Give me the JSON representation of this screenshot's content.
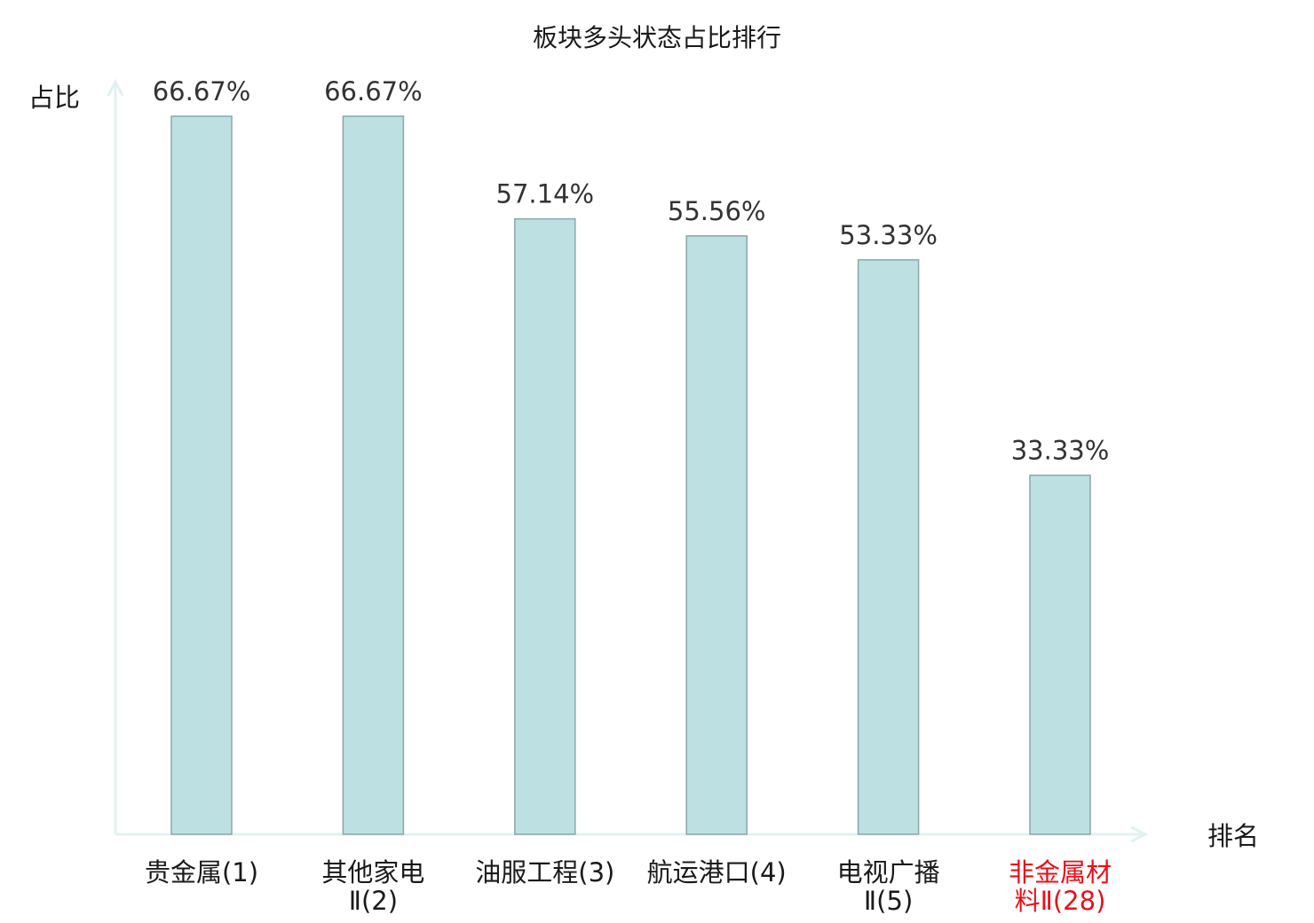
{
  "colors": {
    "bar_fill": "#bde0e3",
    "bar_stroke": "#8aa8aa",
    "axis": "#e0f2f0",
    "label_default": "#1a1a1a",
    "label_highlight": "#e8101a"
  },
  "chart_data": {
    "type": "bar",
    "title": "板块多头状态占比排行",
    "xlabel": "排名",
    "ylabel": "占比",
    "grid": false,
    "legend": "none",
    "ylim": [
      0,
      70
    ],
    "categories": [
      {
        "label": "贵金属",
        "sub": "(1)",
        "lines": [
          "贵金属(1)"
        ],
        "highlight": false
      },
      {
        "label": "其他家电Ⅱ",
        "sub": "(2)",
        "lines": [
          "其他家电",
          "Ⅱ(2)"
        ],
        "highlight": false
      },
      {
        "label": "油服工程",
        "sub": "(3)",
        "lines": [
          "油服工程(3)"
        ],
        "highlight": false
      },
      {
        "label": "航运港口",
        "sub": "(4)",
        "lines": [
          "航运港口(4)"
        ],
        "highlight": false
      },
      {
        "label": "电视广播Ⅱ",
        "sub": "(5)",
        "lines": [
          "电视广播",
          "Ⅱ(5)"
        ],
        "highlight": false
      },
      {
        "label": "非金属材料Ⅱ",
        "sub": "(28)",
        "lines": [
          "非金属材",
          "料Ⅱ(28)"
        ],
        "highlight": true
      }
    ],
    "values": [
      66.67,
      66.67,
      57.14,
      55.56,
      53.33,
      33.33
    ],
    "value_labels": [
      "66.67%",
      "66.67%",
      "57.14%",
      "55.56%",
      "53.33%",
      "33.33%"
    ]
  }
}
